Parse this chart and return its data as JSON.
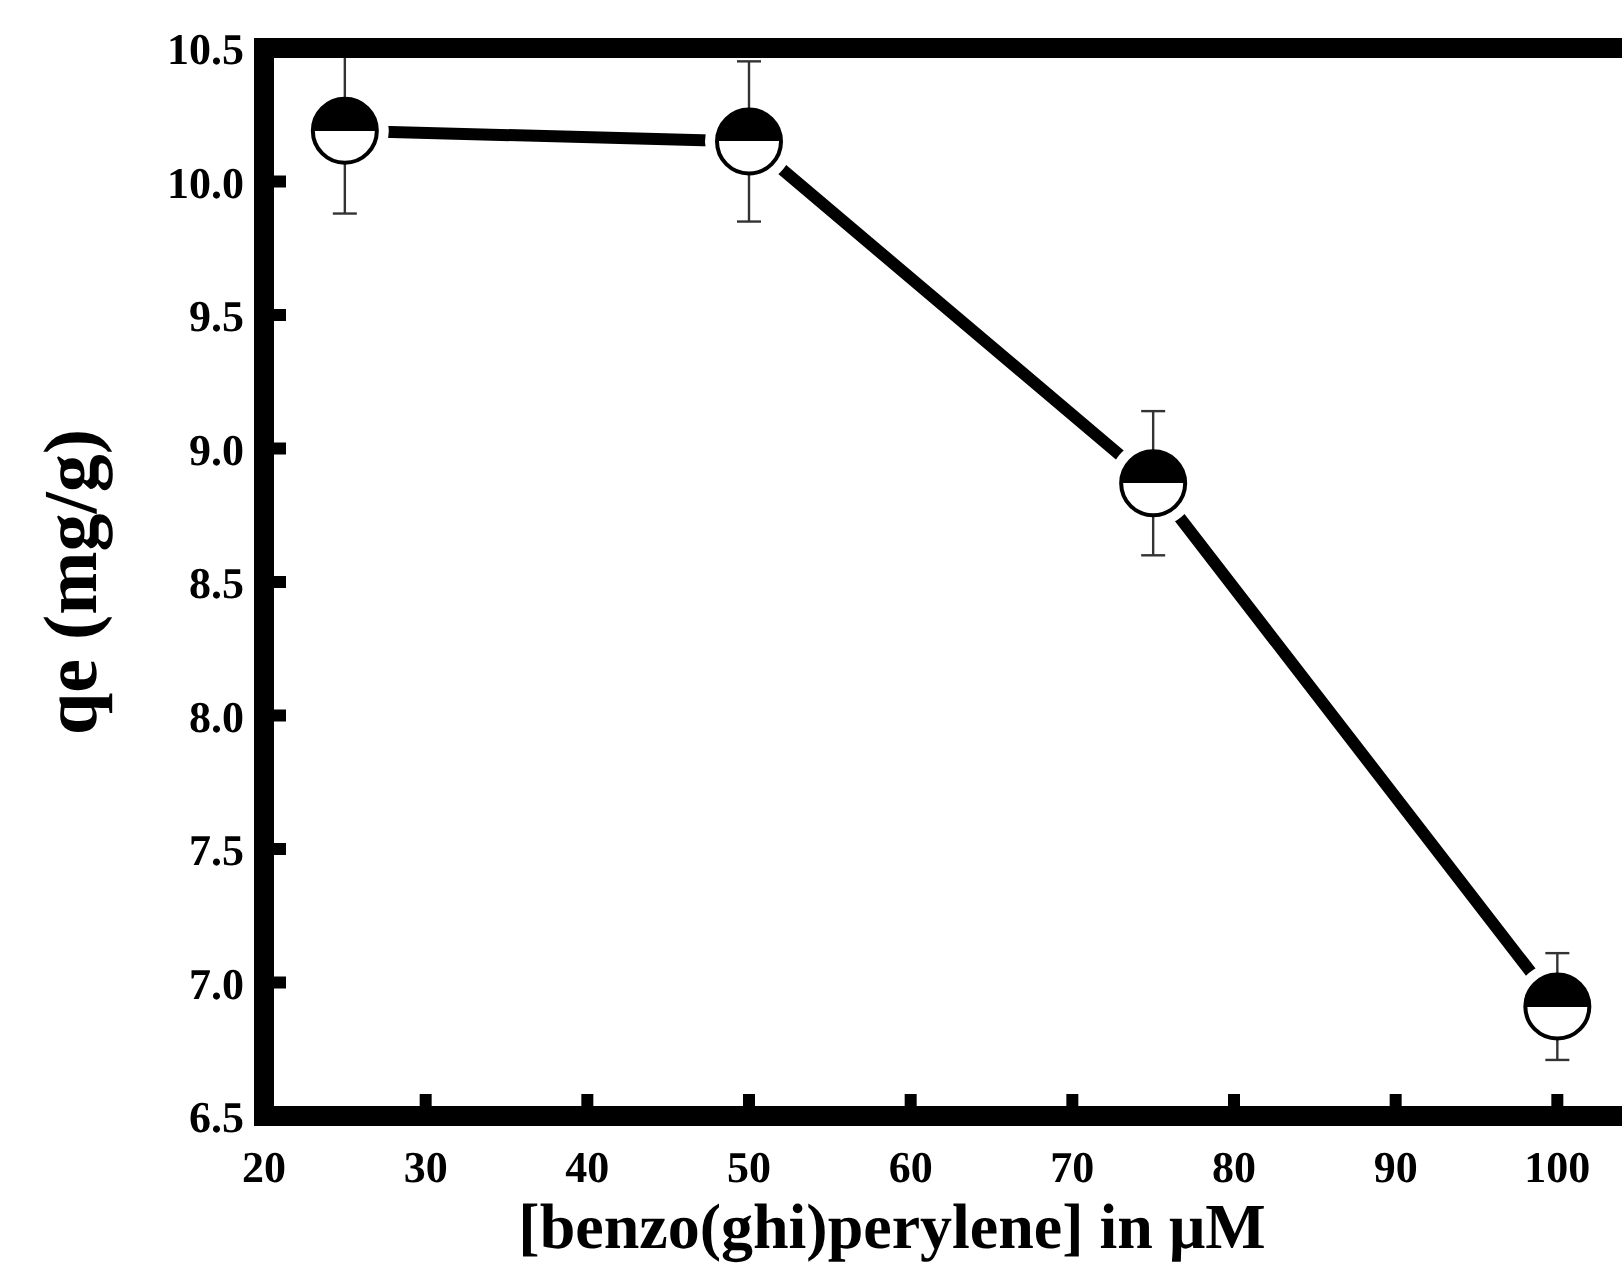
{
  "chart_data": {
    "type": "line",
    "xlabel": "[benzo(ghi)perylene] in μM",
    "ylabel": "qe (mg/g)",
    "x": [
      25,
      50,
      75,
      100
    ],
    "series": [
      {
        "color": "#000000",
        "values": [
          10.19,
          10.15,
          8.87,
          6.91
        ],
        "errors": [
          0.31,
          0.3,
          0.27,
          0.2
        ]
      }
    ],
    "xlim": [
      20,
      104
    ],
    "xticks": [
      20,
      30,
      40,
      50,
      60,
      70,
      80,
      90,
      100
    ],
    "ylim": [
      6.5,
      10.5
    ],
    "yticks": [
      6.5,
      {
        "value": 7,
        "label": "7.0"
      },
      7.5,
      {
        "value": 8,
        "label": "8.0"
      },
      8.5,
      {
        "value": 9,
        "label": "9.0"
      },
      9.5,
      {
        "value": 10,
        "label": "10.0"
      },
      10.5
    ],
    "marker": "circle",
    "line_style": "solid",
    "grid": false
  }
}
